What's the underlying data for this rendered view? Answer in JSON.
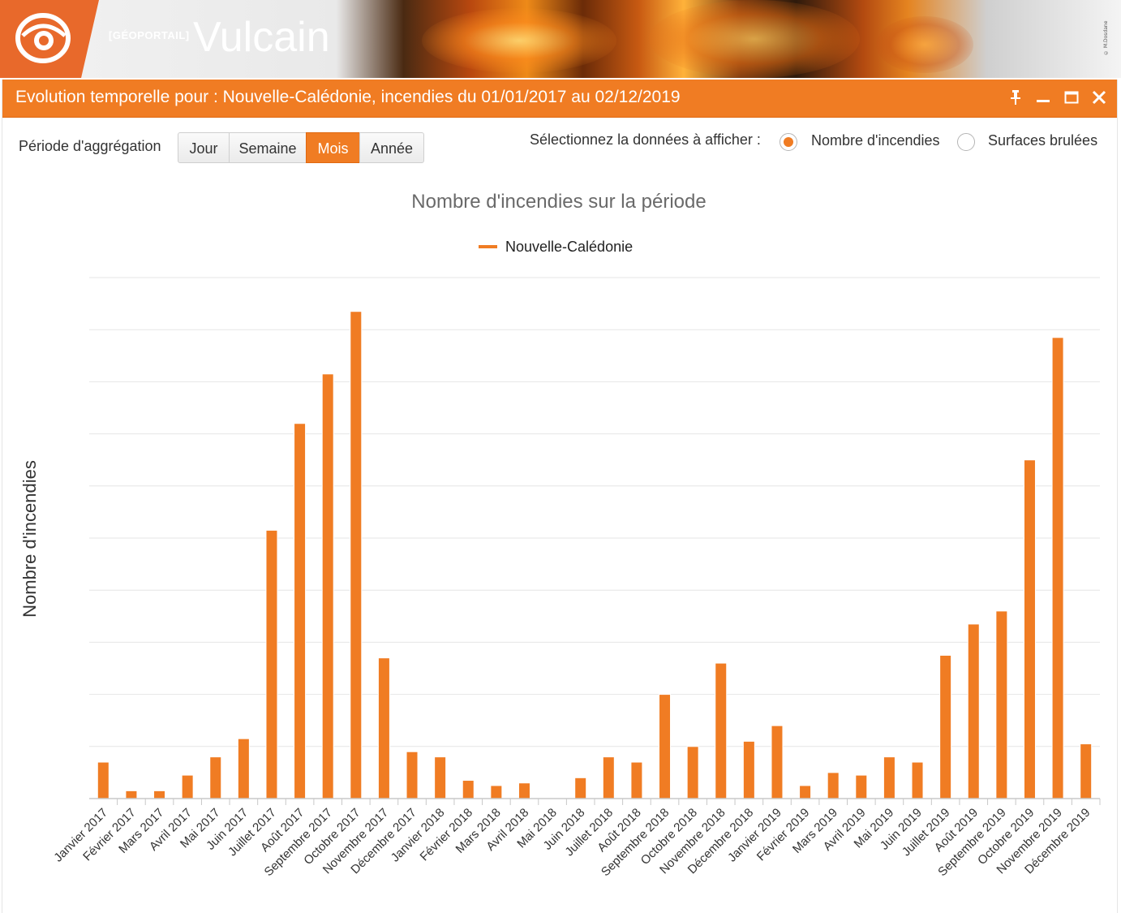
{
  "app": {
    "brand_small": "[GÉOPORTAIL]",
    "brand_big": "Vulcain",
    "credit": "© M.Dosdane"
  },
  "window": {
    "title": "Evolution temporelle pour : Nouvelle-Calédonie, incendies du 01/01/2017 au 02/12/2019",
    "buttons": {
      "pin_icon": "pin-icon",
      "minimize_icon": "minimize-icon",
      "maximize_icon": "maximize-icon",
      "close_icon": "close-icon"
    },
    "accent_color": "#f07c23"
  },
  "controls": {
    "period_label": "Période d'aggrégation",
    "periods": [
      "Jour",
      "Semaine",
      "Mois",
      "Année"
    ],
    "active_period": "Mois",
    "select_label": "Sélectionnez la données à afficher :",
    "options": [
      {
        "label": "Nombre d'incendies",
        "checked": true
      },
      {
        "label": "Surfaces brulées",
        "checked": false
      }
    ]
  },
  "chart_data": {
    "type": "bar",
    "title": "Nombre d'incendies sur la période",
    "ylabel": "Nombre d'incendies",
    "xlabel": "",
    "legend_position": "top-center",
    "grid": true,
    "ylim": [
      0,
      10
    ],
    "series": [
      {
        "name": "Nouvelle-Calédonie",
        "color": "#f07c23",
        "values": [
          0.7,
          0.15,
          0.15,
          0.45,
          0.8,
          1.15,
          5.15,
          7.2,
          8.15,
          9.35,
          2.7,
          0.9,
          0.8,
          0.35,
          0.25,
          0.3,
          0.0,
          0.4,
          0.8,
          0.7,
          2.0,
          1.0,
          2.6,
          1.1,
          1.4,
          0.25,
          0.5,
          0.45,
          0.8,
          0.7,
          2.75,
          3.35,
          3.6,
          6.5,
          8.85,
          1.05
        ]
      }
    ],
    "categories": [
      "Janvier 2017",
      "Février 2017",
      "Mars 2017",
      "Avril 2017",
      "Mai 2017",
      "Juin 2017",
      "Juillet 2017",
      "Août 2017",
      "Septembre 2017",
      "Octobre 2017",
      "Novembre 2017",
      "Décembre 2017",
      "Janvier 2018",
      "Février 2018",
      "Mars 2018",
      "Avril 2018",
      "Mai 2018",
      "Juin 2018",
      "Juillet 2018",
      "Août 2018",
      "Septembre 2018",
      "Octobre 2018",
      "Novembre 2018",
      "Décembre 2018",
      "Janvier 2019",
      "Février 2019",
      "Mars 2019",
      "Avril 2019",
      "Mai 2019",
      "Juin 2019",
      "Juillet 2019",
      "Août 2019",
      "Septembre 2019",
      "Octobre 2019",
      "Novembre 2019",
      "Décembre 2019"
    ]
  }
}
